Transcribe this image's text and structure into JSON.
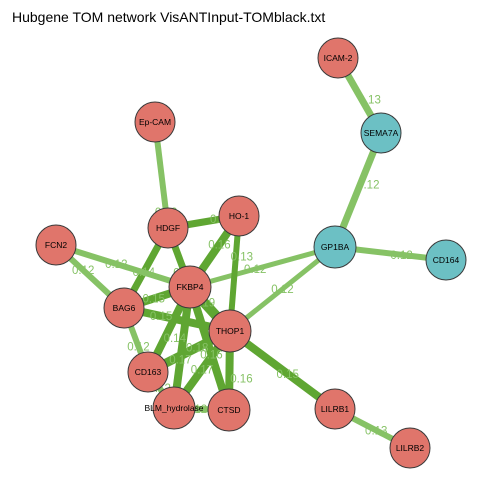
{
  "title": "Hubgene TOM network VisANTInput-TOMblack.txt",
  "colors": {
    "red_node": "#e0756b",
    "teal_node": "#6cc0c4",
    "node_border": "#3a3a3a",
    "edge_dark": "#5fa632",
    "edge_light": "#86c265",
    "label": "#86c265"
  },
  "nodes": [
    {
      "id": "ICAM-2",
      "group": "red"
    },
    {
      "id": "SEMA7A",
      "group": "teal"
    },
    {
      "id": "Ep-CAM",
      "group": "red"
    },
    {
      "id": "HDGF",
      "group": "red"
    },
    {
      "id": "HO-1",
      "group": "red"
    },
    {
      "id": "FCN2",
      "group": "red"
    },
    {
      "id": "GP1BA",
      "group": "teal"
    },
    {
      "id": "CD164",
      "group": "teal"
    },
    {
      "id": "FKBP4",
      "group": "red"
    },
    {
      "id": "BAG6",
      "group": "red"
    },
    {
      "id": "THOP1",
      "group": "red"
    },
    {
      "id": "CD163",
      "group": "red"
    },
    {
      "id": "BLM_hydrolase",
      "group": "red"
    },
    {
      "id": "CTSD",
      "group": "red"
    },
    {
      "id": "LILRB1",
      "group": "red"
    },
    {
      "id": "LILRB2",
      "group": "red"
    }
  ],
  "edges": [
    {
      "source": "ICAM-2",
      "target": "SEMA7A",
      "weight": "0.13"
    },
    {
      "source": "SEMA7A",
      "target": "GP1BA",
      "weight": "0.12"
    },
    {
      "source": "GP1BA",
      "target": "CD164",
      "weight": "0.12"
    },
    {
      "source": "GP1BA",
      "target": "FKBP4",
      "weight": "0.12"
    },
    {
      "source": "GP1BA",
      "target": "THOP1",
      "weight": "0.12"
    },
    {
      "source": "Ep-CAM",
      "target": "HDGF",
      "weight": "0.12"
    },
    {
      "source": "HDGF",
      "target": "HO-1",
      "weight": "0.15"
    },
    {
      "source": "HDGF",
      "target": "FKBP4",
      "weight": "0.14"
    },
    {
      "source": "HDGF",
      "target": "BAG6",
      "weight": "0.14"
    },
    {
      "source": "HO-1",
      "target": "FKBP4",
      "weight": "0.16"
    },
    {
      "source": "HO-1",
      "target": "THOP1",
      "weight": "0.13"
    },
    {
      "source": "FCN2",
      "target": "BAG6",
      "weight": "0.12"
    },
    {
      "source": "FCN2",
      "target": "FKBP4",
      "weight": "0.12"
    },
    {
      "source": "FKBP4",
      "target": "BAG6",
      "weight": "0.15"
    },
    {
      "source": "FKBP4",
      "target": "THOP1",
      "weight": "0.19"
    },
    {
      "source": "FKBP4",
      "target": "CD163",
      "weight": "0.14"
    },
    {
      "source": "FKBP4",
      "target": "BLM_hydrolase",
      "weight": "0.17"
    },
    {
      "source": "FKBP4",
      "target": "CTSD",
      "weight": "0.16"
    },
    {
      "source": "BAG6",
      "target": "THOP1",
      "weight": "0.15"
    },
    {
      "source": "BAG6",
      "target": "CD163",
      "weight": "0.12"
    },
    {
      "source": "THOP1",
      "target": "CD163",
      "weight": "0.18"
    },
    {
      "source": "THOP1",
      "target": "BLM_hydrolase",
      "weight": "0.17"
    },
    {
      "source": "THOP1",
      "target": "CTSD",
      "weight": "0.16"
    },
    {
      "source": "THOP1",
      "target": "LILRB1",
      "weight": "0.15"
    },
    {
      "source": "CD163",
      "target": "BLM_hydrolase",
      "weight": "0.12"
    },
    {
      "source": "BLM_hydrolase",
      "target": "CTSD",
      "weight": "0.12"
    },
    {
      "source": "LILRB1",
      "target": "LILRB2",
      "weight": "0.13"
    }
  ]
}
